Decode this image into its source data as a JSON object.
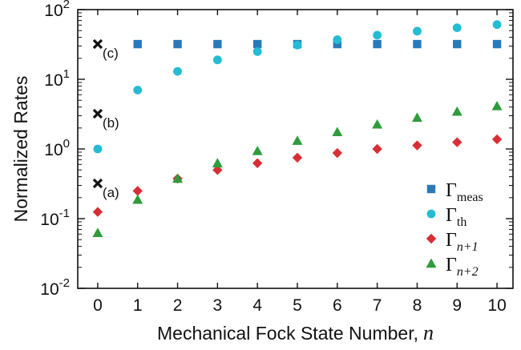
{
  "chart_data": {
    "type": "scatter",
    "xlabel": "Mechanical Fock State Number,",
    "xlabel_symbol": "n",
    "ylabel": "Normalized Rates",
    "xlim": [
      -0.5,
      10.4
    ],
    "ylim": [
      0.01,
      100
    ],
    "yscale": "log",
    "grid": false,
    "legend": "bottom-right",
    "x": [
      0,
      1,
      2,
      3,
      4,
      5,
      6,
      7,
      8,
      9,
      10
    ],
    "xticks": [
      "0",
      "1",
      "2",
      "3",
      "4",
      "5",
      "6",
      "7",
      "8",
      "9",
      "10"
    ],
    "yticks": [
      {
        "value": 0.01,
        "base": "10",
        "exp": "-2"
      },
      {
        "value": 0.1,
        "base": "10",
        "exp": "-1"
      },
      {
        "value": 1,
        "base": "10",
        "exp": "0"
      },
      {
        "value": 10,
        "base": "10",
        "exp": "1"
      },
      {
        "value": 100,
        "base": "10",
        "exp": "2"
      }
    ],
    "series": [
      {
        "legend_base": "Γ",
        "legend_sub": "meas",
        "legend_sub_italic": false,
        "marker": "square",
        "color": "#2a7ab9",
        "x": [
          1,
          2,
          3,
          4,
          5,
          6,
          7,
          8,
          9,
          10
        ],
        "values": [
          32,
          32,
          32,
          32,
          32,
          32,
          32,
          32,
          32,
          32
        ]
      },
      {
        "legend_base": "Γ",
        "legend_sub": "th",
        "legend_sub_italic": false,
        "marker": "circle",
        "color": "#23bcd4",
        "x": [
          0,
          1,
          2,
          3,
          4,
          5,
          6,
          7,
          8,
          9,
          10
        ],
        "values": [
          1.0,
          7.0,
          13.0,
          19.0,
          25.0,
          31.0,
          37.0,
          43.0,
          49.0,
          55.0,
          61.0
        ]
      },
      {
        "legend_base": "Γ",
        "legend_sub": "n+1",
        "legend_sub_italic": true,
        "marker": "diamond",
        "color": "#d62f35",
        "x": [
          0,
          1,
          2,
          3,
          4,
          5,
          6,
          7,
          8,
          9,
          10
        ],
        "values": [
          0.125,
          0.25,
          0.375,
          0.5,
          0.625,
          0.75,
          0.875,
          1.0,
          1.125,
          1.25,
          1.375
        ]
      },
      {
        "legend_base": "Γ",
        "legend_sub": "n+2",
        "legend_sub_italic": true,
        "marker": "triangle",
        "color": "#2e9c3c",
        "x": [
          0,
          1,
          2,
          3,
          4,
          5,
          6,
          7,
          8,
          9,
          10
        ],
        "values": [
          0.0625,
          0.1875,
          0.375,
          0.625,
          0.9375,
          1.3125,
          1.75,
          2.25,
          2.8125,
          3.4375,
          4.125
        ]
      }
    ],
    "annotations": [
      {
        "x": 0,
        "value": 32,
        "label": "(c)",
        "marker": "x",
        "color": "#111111"
      },
      {
        "x": 0,
        "value": 3.2,
        "label": "(b)",
        "marker": "x",
        "color": "#111111"
      },
      {
        "x": 0,
        "value": 0.32,
        "label": "(a)",
        "marker": "x",
        "color": "#111111"
      }
    ]
  }
}
